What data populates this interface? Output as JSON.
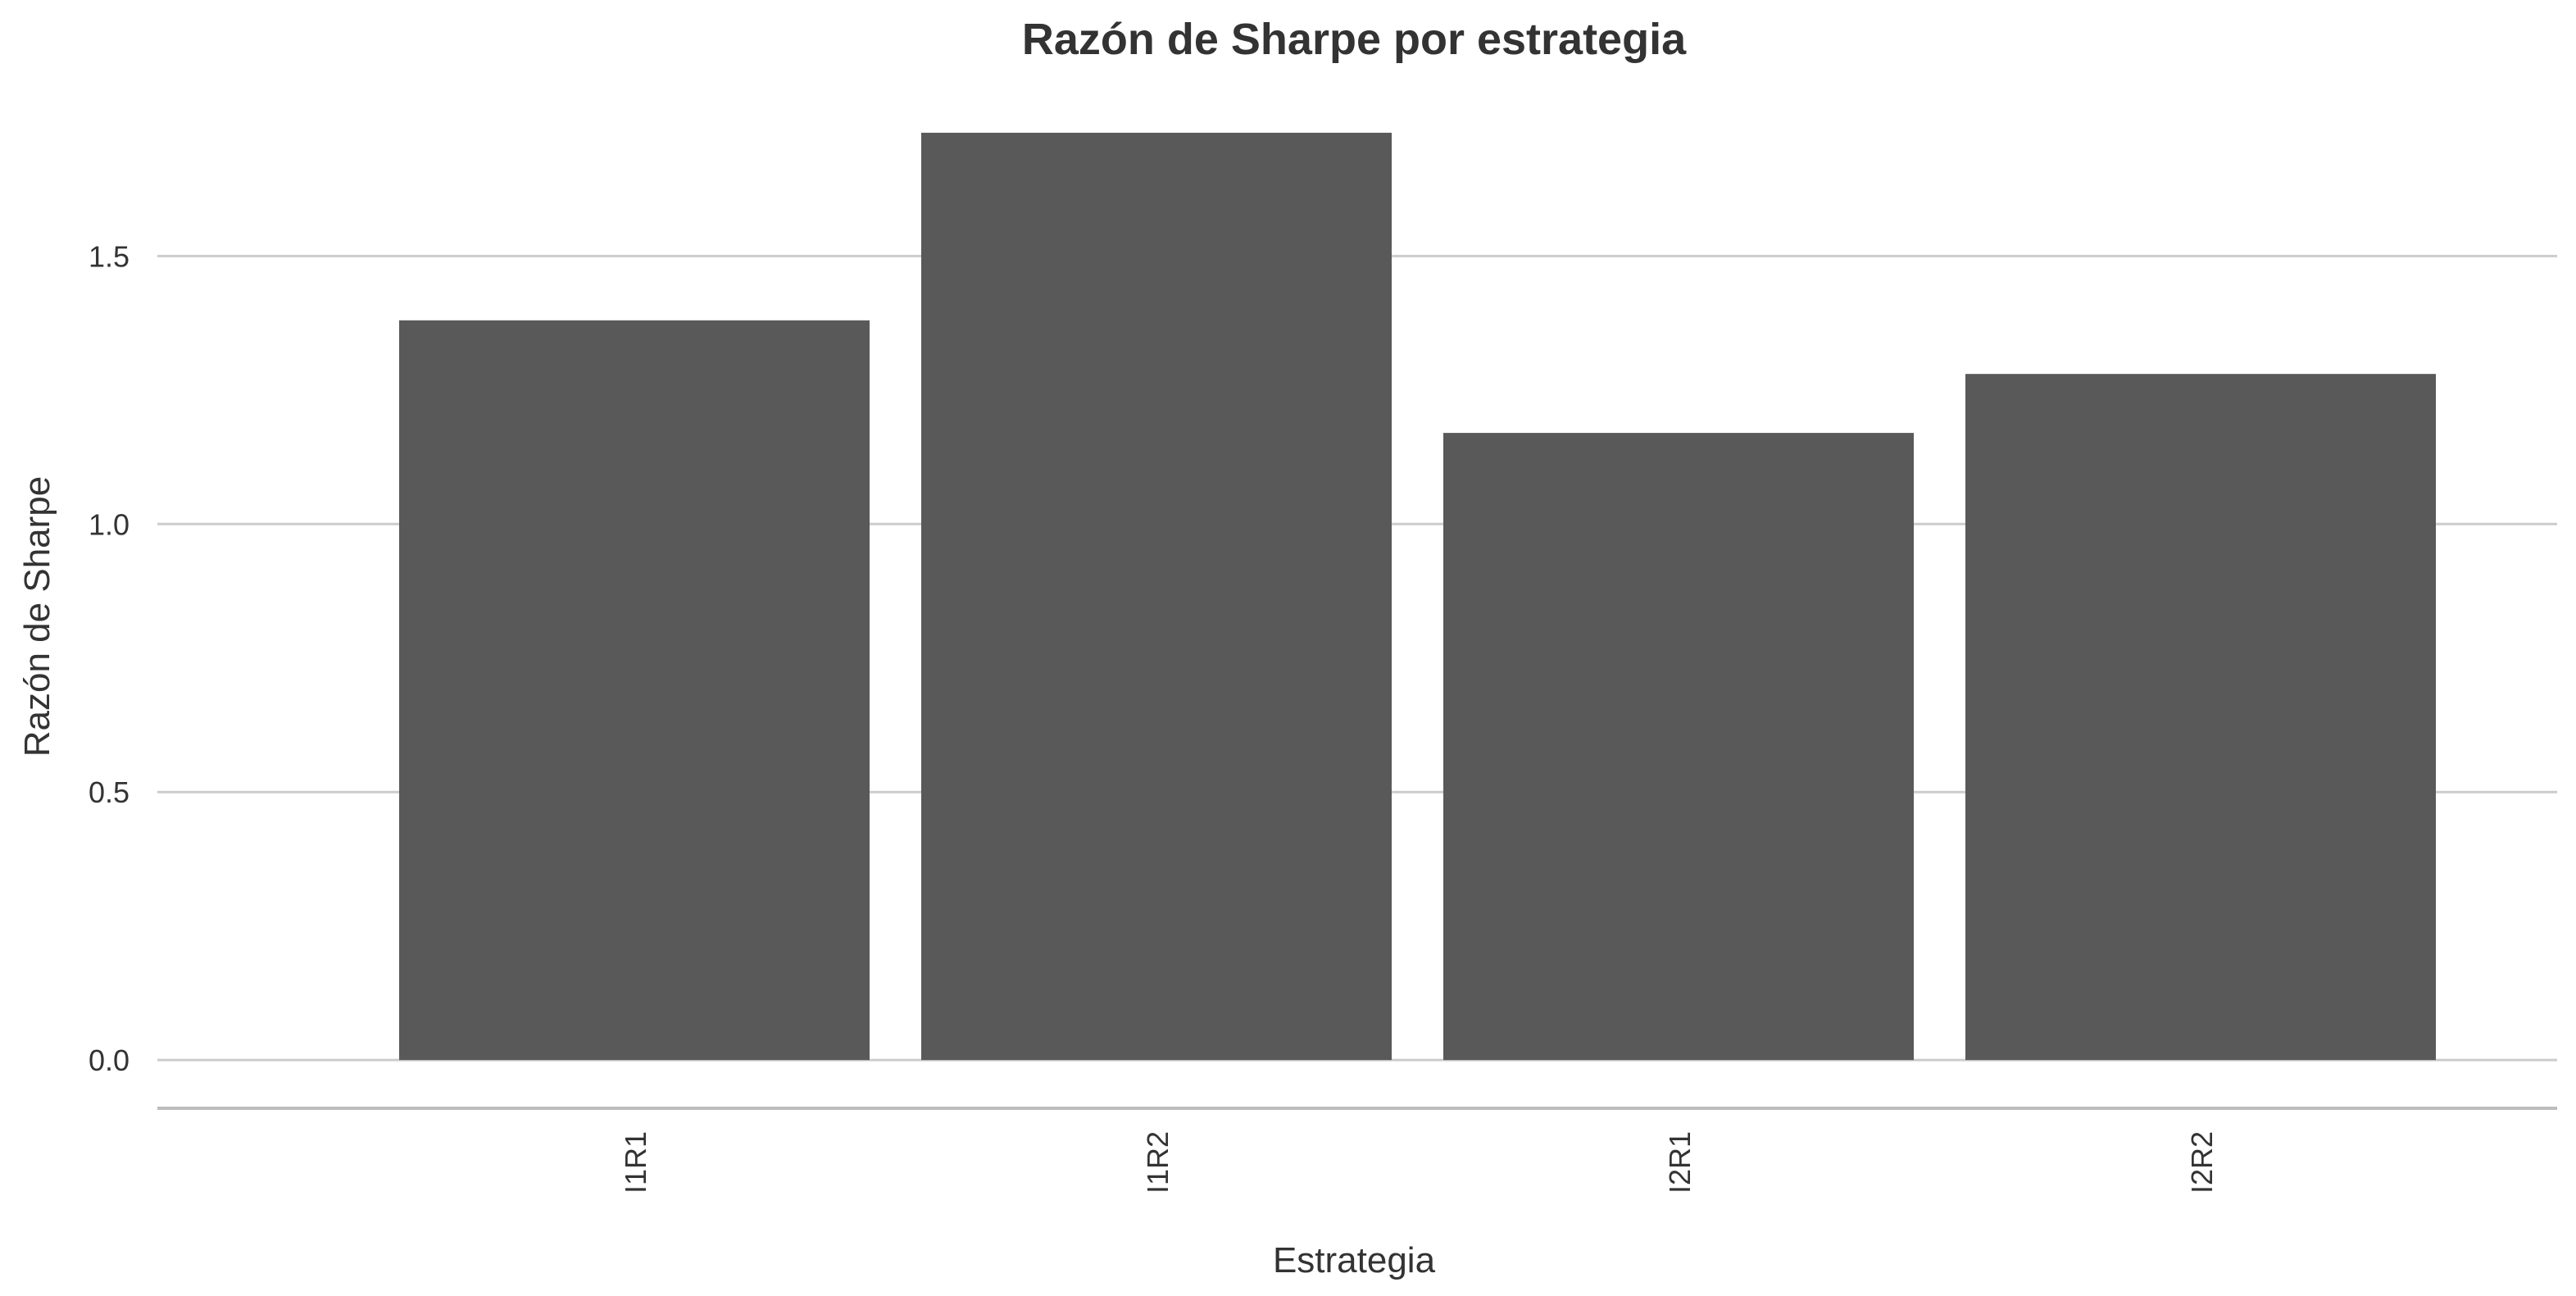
{
  "chart_data": {
    "type": "bar",
    "title": "Razón de Sharpe por estrategia",
    "xlabel": "Estrategia",
    "ylabel": "Razón de Sharpe",
    "categories": [
      "I1R1",
      "I1R2",
      "I2R1",
      "I2R2"
    ],
    "values": [
      1.38,
      1.73,
      1.17,
      1.28
    ],
    "ylim": [
      -0.09,
      1.84
    ],
    "yticks": [
      0.0,
      0.5,
      1.0,
      1.5
    ],
    "ytick_labels": [
      "0.0",
      "0.5",
      "1.0",
      "1.5"
    ],
    "grid": true,
    "legend": "none",
    "bar_color": "#595959",
    "grid_color": "#cccccc"
  }
}
